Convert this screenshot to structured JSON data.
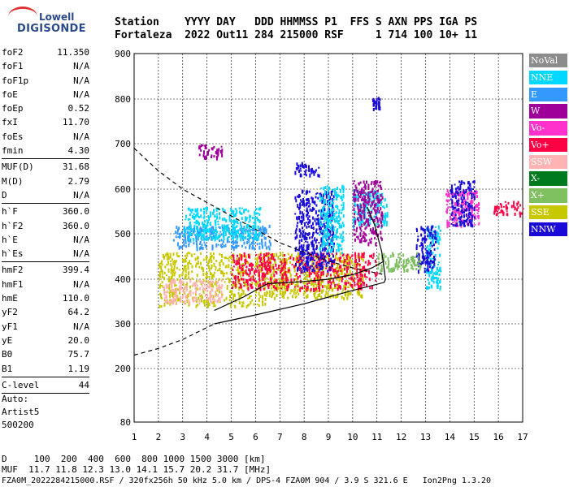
{
  "logo": {
    "line1": "Lowell",
    "line2": "DIGISONDE"
  },
  "header": {
    "row1": "Station    YYYY DAY   DDD HHMMSS P1  FFS S AXN PPS IGA PS",
    "row2": "Fortaleza  2022 Out11 284 215000 RSF     1 714 100 10+ 11"
  },
  "params": [
    {
      "k": "foF2",
      "v": "11.350"
    },
    {
      "k": "foF1",
      "v": "N/A"
    },
    {
      "k": "foF1p",
      "v": "N/A"
    },
    {
      "k": "foE",
      "v": "N/A"
    },
    {
      "k": "foEp",
      "v": "0.52"
    },
    {
      "k": "fxI",
      "v": "11.70"
    },
    {
      "k": "foEs",
      "v": "N/A"
    },
    {
      "k": "fmin",
      "v": "4.30"
    },
    {
      "k": "sep"
    },
    {
      "k": "MUF(D)",
      "v": "31.68"
    },
    {
      "k": "M(D)",
      "v": "2.79"
    },
    {
      "k": "D",
      "v": "N/A"
    },
    {
      "k": "sep"
    },
    {
      "k": "h`F",
      "v": "360.0"
    },
    {
      "k": "h`F2",
      "v": "360.0"
    },
    {
      "k": "h`E",
      "v": "N/A"
    },
    {
      "k": "h`Es",
      "v": "N/A"
    },
    {
      "k": "sep"
    },
    {
      "k": "hmF2",
      "v": "399.4"
    },
    {
      "k": "hmF1",
      "v": "N/A"
    },
    {
      "k": "hmE",
      "v": "110.0"
    },
    {
      "k": "yF2",
      "v": "64.2"
    },
    {
      "k": "yF1",
      "v": "N/A"
    },
    {
      "k": "yE",
      "v": "20.0"
    },
    {
      "k": "B0",
      "v": "75.7"
    },
    {
      "k": "B1",
      "v": "1.19"
    },
    {
      "k": "sep"
    },
    {
      "k": "C-level",
      "v": "44"
    },
    {
      "k": "sep"
    }
  ],
  "auto": {
    "line1": "Auto:",
    "line2": "Artist5",
    "line3": "500200"
  },
  "legend": [
    {
      "label": "NoVal",
      "color": "#8c8c8c"
    },
    {
      "label": "NNE",
      "color": "#00d8ff"
    },
    {
      "label": "E",
      "color": "#3399ff"
    },
    {
      "label": "W",
      "color": "#a0009a"
    },
    {
      "label": "Vo-",
      "color": "#ff33cc"
    },
    {
      "label": "Vo+",
      "color": "#ff0044"
    },
    {
      "label": "SSW",
      "color": "#ffb3b3"
    },
    {
      "label": "X-",
      "color": "#007a1f"
    },
    {
      "label": "X+",
      "color": "#7fc060"
    },
    {
      "label": "SSE",
      "color": "#c8c800"
    },
    {
      "label": "NNW",
      "color": "#1a0ad8"
    }
  ],
  "footer": {
    "line1": "D     100  200  400  600  800 1000 1500 3000 [km]",
    "line2": "MUF  11.7 11.8 12.3 13.0 14.1 15.7 20.2 31.7 [MHz]",
    "line3": "FZA0M_2022284215000.RSF / 320fx256h 50 kHz 5.0 km / DPS-4 FZA0M 904 / 3.9 S 321.6 E   Ion2Png 1.3.20"
  },
  "chart_data": {
    "type": "scatter",
    "x_ticks": [
      1,
      2,
      3,
      4,
      5,
      6,
      7,
      8,
      9,
      10,
      11,
      12,
      13,
      14,
      15,
      16,
      17
    ],
    "y_ticks": [
      80,
      200,
      300,
      400,
      500,
      600,
      700,
      800,
      900
    ],
    "xlim": [
      1,
      17
    ],
    "ylim": [
      80,
      900
    ],
    "xlabel": "",
    "ylabel": "",
    "grid": true,
    "clusters": [
      {
        "name": "SSE",
        "color": "#c8c800",
        "x": [
          2.0,
          6.4
        ],
        "y": [
          340,
          460
        ]
      },
      {
        "name": "SSW",
        "color": "#ffb3b3",
        "x": [
          2.2,
          4.6
        ],
        "y": [
          350,
          400
        ]
      },
      {
        "name": "SSE",
        "color": "#c8c800",
        "x": [
          6.4,
          10.4
        ],
        "y": [
          360,
          460
        ]
      },
      {
        "name": "Vo+",
        "color": "#ff0044",
        "x": [
          5.0,
          11.0
        ],
        "y": [
          380,
          460
        ]
      },
      {
        "name": "E",
        "color": "#3399ff",
        "x": [
          2.6,
          6.6
        ],
        "y": [
          470,
          520
        ]
      },
      {
        "name": "NNE",
        "color": "#00d8ff",
        "x": [
          3.0,
          6.2
        ],
        "y": [
          490,
          560
        ]
      },
      {
        "name": "NNW",
        "color": "#1a0ad8",
        "x": [
          7.6,
          9.2
        ],
        "y": [
          420,
          600
        ]
      },
      {
        "name": "NNE",
        "color": "#00d8ff",
        "x": [
          8.6,
          9.6
        ],
        "y": [
          460,
          610
        ]
      },
      {
        "name": "NNE",
        "color": "#00d8ff",
        "x": [
          10.0,
          11.4
        ],
        "y": [
          520,
          600
        ]
      },
      {
        "name": "W",
        "color": "#a0009a",
        "x": [
          10.0,
          11.2
        ],
        "y": [
          480,
          620
        ]
      },
      {
        "name": "NNE",
        "color": "#00d8ff",
        "x": [
          13.0,
          13.6
        ],
        "y": [
          380,
          520
        ]
      },
      {
        "name": "Vo-",
        "color": "#ff33cc",
        "x": [
          13.8,
          15.2
        ],
        "y": [
          520,
          600
        ]
      },
      {
        "name": "NNW",
        "color": "#1a0ad8",
        "x": [
          14.0,
          15.0
        ],
        "y": [
          520,
          620
        ]
      },
      {
        "name": "Vo+",
        "color": "#ff0044",
        "x": [
          15.8,
          17.0
        ],
        "y": [
          545,
          575
        ]
      },
      {
        "name": "W",
        "color": "#a0009a",
        "x": [
          3.6,
          4.6
        ],
        "y": [
          670,
          700
        ]
      },
      {
        "name": "NNW",
        "color": "#1a0ad8",
        "x": [
          7.6,
          8.6
        ],
        "y": [
          630,
          660
        ]
      },
      {
        "name": "NNW",
        "color": "#1a0ad8",
        "x": [
          10.8,
          11.1
        ],
        "y": [
          780,
          805
        ]
      },
      {
        "name": "NNW",
        "color": "#1a0ad8",
        "x": [
          12.6,
          13.4
        ],
        "y": [
          420,
          520
        ]
      },
      {
        "name": "X+",
        "color": "#7fc060",
        "x": [
          11.0,
          12.8
        ],
        "y": [
          420,
          460
        ]
      }
    ],
    "profile_solid": [
      [
        4.3,
        300
      ],
      [
        6,
        320
      ],
      [
        8,
        345
      ],
      [
        10,
        375
      ],
      [
        11.3,
        393
      ],
      [
        11.35,
        400
      ],
      [
        11.2,
        460
      ],
      [
        10.9,
        520
      ],
      [
        10.6,
        560
      ]
    ],
    "trace_solid": [
      [
        4.3,
        330
      ],
      [
        5.5,
        360
      ],
      [
        6.5,
        390
      ],
      [
        8.0,
        395
      ],
      [
        9.0,
        400
      ],
      [
        10.0,
        410
      ],
      [
        10.8,
        425
      ],
      [
        11.3,
        440
      ]
    ],
    "profile_dashed_lower": [
      [
        1,
        230
      ],
      [
        2,
        245
      ],
      [
        3,
        265
      ],
      [
        4.3,
        300
      ]
    ],
    "profile_dashed_upper": [
      [
        1,
        690
      ],
      [
        2,
        640
      ],
      [
        3,
        600
      ],
      [
        4,
        570
      ],
      [
        5,
        540
      ],
      [
        6,
        510
      ],
      [
        7,
        480
      ],
      [
        8,
        460
      ],
      [
        9,
        440
      ],
      [
        10,
        425
      ],
      [
        11.3,
        410
      ]
    ]
  }
}
